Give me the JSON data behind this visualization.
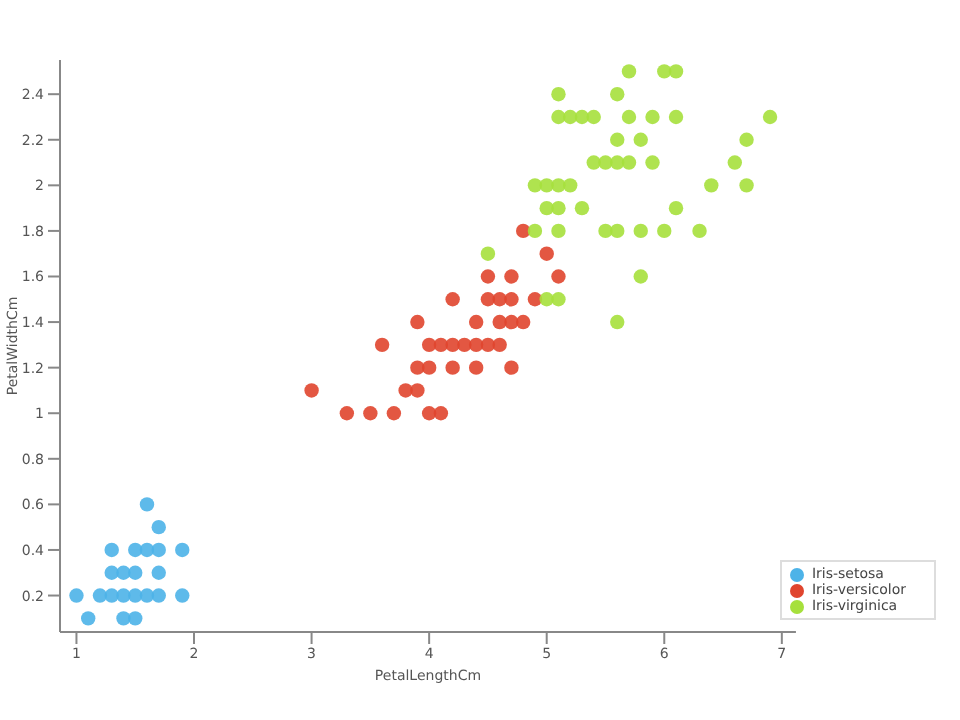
{
  "chart_data": {
    "type": "scatter",
    "xlabel": "PetalLengthCm",
    "ylabel": "PetalWidthCm",
    "xlim": [
      0.86,
      7.12
    ],
    "ylim": [
      0.04,
      2.55
    ],
    "xticks": [
      1,
      2,
      3,
      4,
      5,
      6,
      7
    ],
    "yticks": [
      0.2,
      0.4,
      0.6,
      0.8,
      1,
      1.2,
      1.4,
      1.6,
      1.8,
      2,
      2.2,
      2.4
    ],
    "grid": false,
    "legend": "bottom right",
    "marker": "circle",
    "series": [
      {
        "name": "Iris-setosa",
        "color": "#4db3e8",
        "x": [
          1.0,
          1.1,
          1.2,
          1.3,
          1.3,
          1.3,
          1.4,
          1.4,
          1.4,
          1.5,
          1.5,
          1.5,
          1.5,
          1.6,
          1.6,
          1.6,
          1.7,
          1.7,
          1.7,
          1.7,
          1.9,
          1.9
        ],
        "values": [
          0.2,
          0.1,
          0.2,
          0.2,
          0.3,
          0.4,
          0.1,
          0.2,
          0.3,
          0.1,
          0.2,
          0.3,
          0.4,
          0.2,
          0.4,
          0.6,
          0.2,
          0.3,
          0.4,
          0.5,
          0.2,
          0.4
        ]
      },
      {
        "name": "Iris-versicolor",
        "color": "#e0452e",
        "x": [
          3.3,
          3.5,
          3.7,
          4.0,
          4.1,
          3.0,
          3.8,
          3.9,
          3.9,
          4.0,
          4.2,
          4.4,
          4.7,
          3.6,
          4.0,
          4.1,
          4.2,
          4.3,
          4.4,
          4.5,
          4.6,
          3.9,
          4.4,
          4.6,
          4.7,
          4.8,
          4.2,
          4.5,
          4.6,
          4.7,
          4.9,
          4.5,
          4.7,
          5.1,
          5.0,
          4.8
        ],
        "values": [
          1.0,
          1.0,
          1.0,
          1.0,
          1.0,
          1.1,
          1.1,
          1.1,
          1.2,
          1.2,
          1.2,
          1.2,
          1.2,
          1.3,
          1.3,
          1.3,
          1.3,
          1.3,
          1.3,
          1.3,
          1.3,
          1.4,
          1.4,
          1.4,
          1.4,
          1.4,
          1.5,
          1.5,
          1.5,
          1.5,
          1.5,
          1.6,
          1.6,
          1.6,
          1.7,
          1.8
        ]
      },
      {
        "name": "Iris-virginica",
        "color": "#a6e03c",
        "x": [
          5.6,
          5.0,
          5.1,
          5.8,
          4.5,
          4.9,
          5.1,
          5.5,
          5.6,
          5.8,
          6.0,
          6.3,
          5.0,
          5.1,
          5.3,
          6.1,
          4.9,
          5.0,
          5.1,
          5.2,
          6.4,
          6.7,
          5.4,
          5.5,
          5.6,
          5.7,
          5.9,
          6.6,
          5.6,
          5.8,
          6.7,
          5.1,
          5.2,
          5.3,
          5.4,
          5.7,
          5.9,
          6.1,
          6.9,
          5.1,
          5.6,
          5.7,
          6.0,
          6.1
        ],
        "values": [
          1.4,
          1.5,
          1.5,
          1.6,
          1.7,
          1.8,
          1.8,
          1.8,
          1.8,
          1.8,
          1.8,
          1.8,
          1.9,
          1.9,
          1.9,
          1.9,
          2.0,
          2.0,
          2.0,
          2.0,
          2.0,
          2.0,
          2.1,
          2.1,
          2.1,
          2.1,
          2.1,
          2.1,
          2.2,
          2.2,
          2.2,
          2.3,
          2.3,
          2.3,
          2.3,
          2.3,
          2.3,
          2.3,
          2.3,
          2.4,
          2.4,
          2.5,
          2.5,
          2.5
        ]
      }
    ]
  }
}
